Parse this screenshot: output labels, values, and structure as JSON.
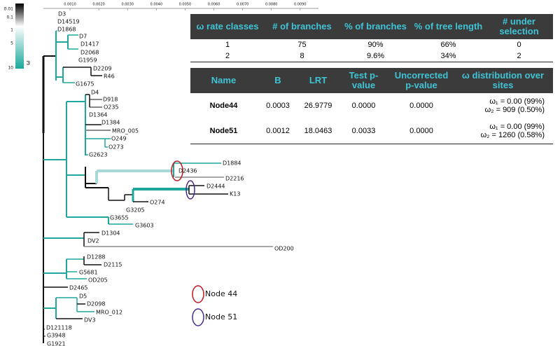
{
  "color_scale": {
    "labels": [
      "0.01",
      "0.1",
      "1",
      "5",
      "10"
    ],
    "symbol": "ω"
  },
  "scale_axis": {
    "ticks": [
      "0.0010",
      "0.0020",
      "0.0030",
      "0.0040",
      "0.0050",
      "0.0060",
      "0.0070",
      "0.0080",
      "0.0090"
    ]
  },
  "tree": {
    "leaves": [
      "D3",
      "D14519",
      "D1868",
      "D7",
      "D1417",
      "D2068",
      "G1959",
      "D2209",
      "R46",
      "G1675",
      "D4",
      "D918",
      "O235",
      "D1364",
      "D1384",
      "MRO_005",
      "O249",
      "O273",
      "G2623",
      "D1884",
      "D2436",
      "D2216",
      "D2444",
      "K13",
      "O274",
      "G3205",
      "G3655",
      "G3603",
      "D1304",
      "DV2",
      "OD200",
      "D1288",
      "D2115",
      "G5681",
      "OD205",
      "D2465",
      "D5",
      "D2098",
      "MRO_012",
      "DV3",
      "D121118",
      "G3948",
      "G1921"
    ]
  },
  "table1": {
    "header": [
      "ω rate classes",
      "# of branches",
      "% of branches",
      "% of tree length",
      "# under selection"
    ],
    "rows": [
      [
        "1",
        "75",
        "90%",
        "66%",
        "0"
      ],
      [
        "2",
        "8",
        "9.6%",
        "34%",
        "2"
      ]
    ]
  },
  "table2": {
    "header": [
      "Name",
      "B",
      "LRT",
      "Test p-value",
      "Uncorrected p-value",
      "ω distribution over sites"
    ],
    "rows": [
      [
        "Node44",
        "0.0003",
        "26.9779",
        "0.0000",
        "0.0000",
        [
          "ω₁ = 0.00 (99%)",
          "ω₂ = 909 (0.50%)"
        ]
      ],
      [
        "Node51",
        "0.0012",
        "18.0463",
        "0.0033",
        "0.0000",
        [
          "ω₁ = 0.00 (99%)",
          "ω₂ = 1260 (0.58%)"
        ]
      ]
    ]
  },
  "legend": [
    {
      "label": "Node 44"
    },
    {
      "label": "Node 51"
    }
  ]
}
